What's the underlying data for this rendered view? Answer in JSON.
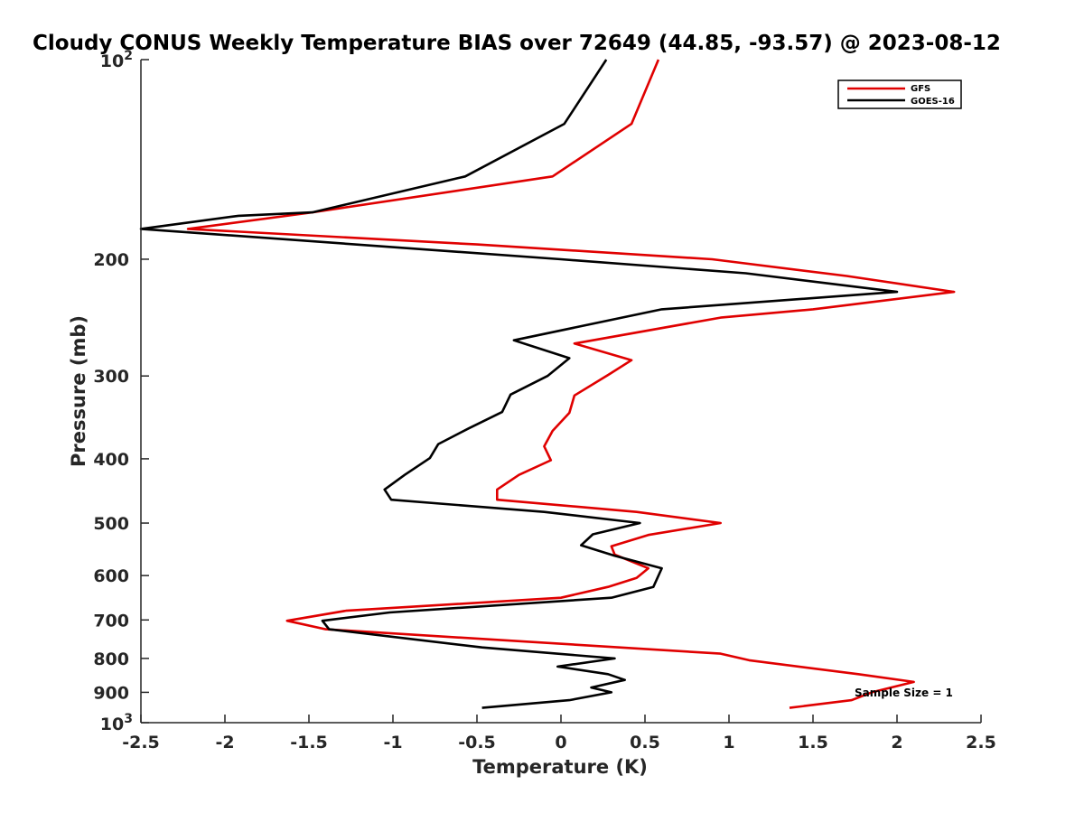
{
  "chart_data": {
    "type": "line",
    "title": "Cloudy CONUS Weekly Temperature BIAS over 72649 (44.85, -93.57) @ 2023-08-12",
    "xlabel": "Temperature (K)",
    "ylabel": "Pressure (mb)",
    "xlim": [
      -2.5,
      2.5
    ],
    "ylim": [
      100,
      1000
    ],
    "y_scale": "log",
    "y_reversed": true,
    "x_ticks": [
      "-2.5",
      "-2",
      "-1.5",
      "-1",
      "-0.5",
      "0",
      "0.5",
      "1",
      "1.5",
      "2",
      "2.5"
    ],
    "x_tick_values": [
      -2.5,
      -2,
      -1.5,
      -1,
      -0.5,
      0,
      0.5,
      1,
      1.5,
      2,
      2.5
    ],
    "y_ticks": [
      {
        "value": 200,
        "label": "200"
      },
      {
        "value": 300,
        "label": "300"
      },
      {
        "value": 400,
        "label": "400"
      },
      {
        "value": 500,
        "label": "500"
      },
      {
        "value": 600,
        "label": "600"
      },
      {
        "value": 700,
        "label": "700"
      },
      {
        "value": 800,
        "label": "800"
      },
      {
        "value": 900,
        "label": "900"
      }
    ],
    "y_ticks_power": [
      {
        "value": 100,
        "base": "10",
        "exp": "2"
      },
      {
        "value": 1000,
        "base": "10",
        "exp": "3"
      }
    ],
    "legend_position": "top-right",
    "grid": false,
    "annotation": "Sample Size = 1",
    "series": [
      {
        "name": "GFS",
        "color": "#e00000",
        "points": [
          [
            0.58,
            100
          ],
          [
            0.42,
            125
          ],
          [
            -0.05,
            150
          ],
          [
            -1.48,
            170
          ],
          [
            -2.22,
            180
          ],
          [
            -0.5,
            190
          ],
          [
            0.9,
            200
          ],
          [
            1.7,
            212
          ],
          [
            2.34,
            224
          ],
          [
            1.5,
            238
          ],
          [
            0.95,
            245
          ],
          [
            0.08,
            268
          ],
          [
            0.42,
            284
          ],
          [
            0.28,
            299
          ],
          [
            0.08,
            321
          ],
          [
            0.05,
            341
          ],
          [
            -0.05,
            363
          ],
          [
            -0.1,
            383
          ],
          [
            -0.06,
            402
          ],
          [
            -0.25,
            423
          ],
          [
            -0.38,
            445
          ],
          [
            -0.38,
            461
          ],
          [
            0.45,
            481
          ],
          [
            0.95,
            500
          ],
          [
            0.52,
            521
          ],
          [
            0.3,
            542
          ],
          [
            0.32,
            558
          ],
          [
            0.52,
            585
          ],
          [
            0.45,
            605
          ],
          [
            0.28,
            624
          ],
          [
            0.0,
            648
          ],
          [
            -1.28,
            678
          ],
          [
            -1.63,
            702
          ],
          [
            -1.4,
            723
          ],
          [
            0.95,
            787
          ],
          [
            1.12,
            805
          ],
          [
            1.77,
            845
          ],
          [
            2.1,
            868
          ],
          [
            1.85,
            900
          ],
          [
            1.73,
            925
          ],
          [
            1.36,
            950
          ]
        ]
      },
      {
        "name": "GOES-16",
        "color": "#000000",
        "points": [
          [
            0.27,
            100
          ],
          [
            0.02,
            125
          ],
          [
            -0.57,
            150
          ],
          [
            -1.48,
            170
          ],
          [
            -1.92,
            172
          ],
          [
            -2.5,
            180
          ],
          [
            0.0,
            200
          ],
          [
            1.1,
            210
          ],
          [
            2.0,
            224
          ],
          [
            0.6,
            238
          ],
          [
            -0.28,
            265
          ],
          [
            0.05,
            282
          ],
          [
            -0.08,
            300
          ],
          [
            -0.3,
            320
          ],
          [
            -0.35,
            340
          ],
          [
            -0.55,
            360
          ],
          [
            -0.73,
            380
          ],
          [
            -0.78,
            399
          ],
          [
            -0.93,
            423
          ],
          [
            -1.05,
            445
          ],
          [
            -1.01,
            461
          ],
          [
            -0.1,
            481
          ],
          [
            0.47,
            500
          ],
          [
            0.19,
            520
          ],
          [
            0.12,
            540
          ],
          [
            0.32,
            560
          ],
          [
            0.6,
            585
          ],
          [
            0.55,
            624
          ],
          [
            0.3,
            648
          ],
          [
            -1.02,
            682
          ],
          [
            -1.42,
            702
          ],
          [
            -1.38,
            723
          ],
          [
            -0.47,
            770
          ],
          [
            0.32,
            800
          ],
          [
            -0.02,
            823
          ],
          [
            0.28,
            845
          ],
          [
            0.38,
            862
          ],
          [
            0.18,
            885
          ],
          [
            0.3,
            900
          ],
          [
            0.05,
            925
          ],
          [
            -0.47,
            950
          ]
        ]
      }
    ]
  }
}
